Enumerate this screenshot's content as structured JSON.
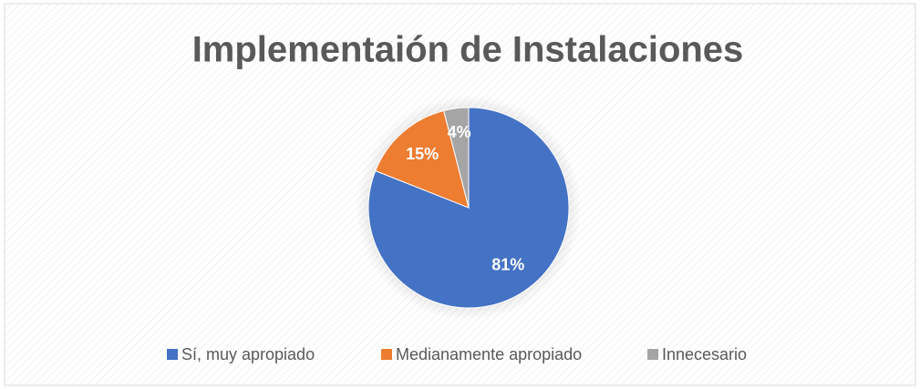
{
  "chart_data": {
    "type": "pie",
    "title": "Implementaión de Instalaciones",
    "categories": [
      "Sí, muy apropiado",
      "Medianamente apropiado",
      "Innecesario"
    ],
    "values": [
      81,
      15,
      4
    ],
    "value_labels": [
      "81%",
      "15%",
      "4%"
    ],
    "colors": [
      "#4472c4",
      "#ed7d31",
      "#a5a5a5"
    ],
    "legend": "bottom"
  }
}
